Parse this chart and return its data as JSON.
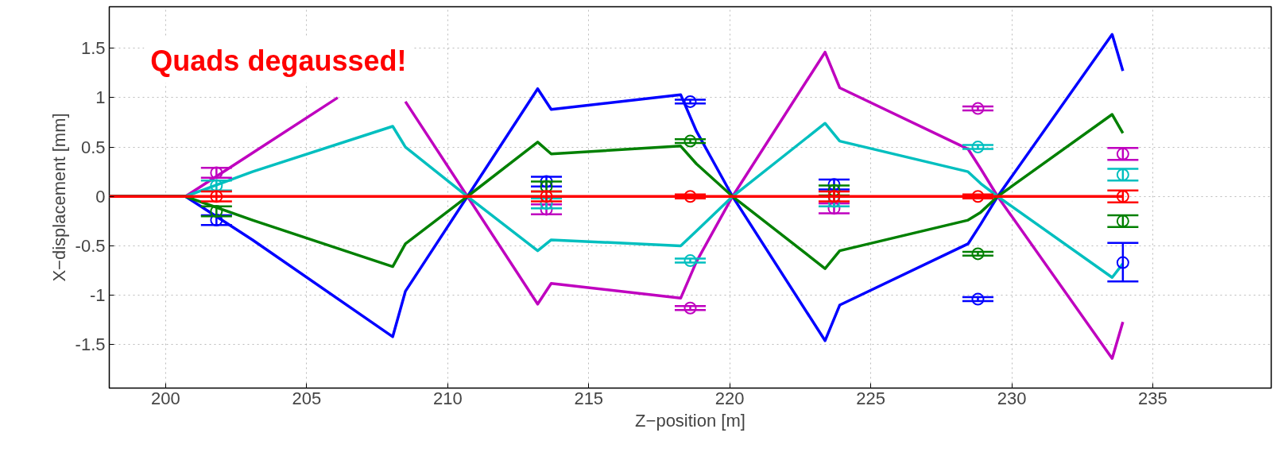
{
  "chart_data": {
    "type": "line",
    "xlabel": "Z−position [m]",
    "ylabel": "X−displacement [mm]",
    "annotations": [
      "Quads degaussed!"
    ],
    "xlim": [
      198,
      239.2
    ],
    "ylim": [
      -1.94,
      1.92
    ],
    "xticks": [
      200,
      205,
      210,
      215,
      220,
      225,
      230,
      235
    ],
    "yticks": [
      -1.5,
      -1,
      -0.5,
      0,
      0.5,
      1,
      1.5
    ],
    "grid": true,
    "line_style": "solid",
    "marker": "none",
    "series": [
      {
        "color": "#0000ff",
        "x": [
          198,
          200.7,
          203.08,
          208.05,
          208.5,
          210.7,
          213.19,
          213.67,
          218.26,
          218.82,
          220.1,
          223.38,
          223.9,
          228.45,
          228.9,
          229.5,
          233.56,
          233.94
        ],
        "values": [
          0,
          0,
          -0.44,
          -1.42,
          -0.96,
          0,
          1.09,
          0.88,
          1.03,
          0.66,
          0,
          -1.46,
          -1.1,
          -0.48,
          -0.28,
          0,
          1.64,
          1.27
        ]
      },
      {
        "color": "#bf00bf",
        "x": [
          198,
          200.7,
          203.08,
          206.1,
          207.3,
          208.5,
          210.7,
          213.19,
          213.67,
          218.26,
          218.82,
          220.1,
          223.38,
          223.9,
          228.45,
          228.9,
          229.5,
          233.56,
          233.94
        ],
        "values": [
          0,
          0,
          0.44,
          1.0,
          null,
          0.96,
          0,
          -1.09,
          -0.88,
          -1.03,
          -0.66,
          0,
          1.46,
          1.1,
          0.48,
          0.28,
          0,
          -1.64,
          -1.27
        ]
      },
      {
        "color": "#00bfbf",
        "x": [
          198,
          200.7,
          203.08,
          208.05,
          208.5,
          210.7,
          213.19,
          213.67,
          218.26,
          218.82,
          220.1,
          223.38,
          223.9,
          228.45,
          228.9,
          229.5,
          233.56,
          233.94
        ],
        "values": [
          0,
          0,
          0.25,
          0.71,
          0.5,
          0,
          -0.55,
          -0.44,
          -0.5,
          -0.35,
          0,
          0.74,
          0.56,
          0.25,
          0.13,
          0,
          -0.82,
          -0.68
        ]
      },
      {
        "color": "#008000",
        "x": [
          198,
          200.7,
          203.08,
          208.05,
          208.5,
          210.7,
          213.19,
          213.67,
          218.26,
          218.82,
          220.1,
          223.38,
          223.9,
          228.45,
          228.9,
          229.5,
          233.56,
          233.94
        ],
        "values": [
          0,
          0,
          -0.24,
          -0.71,
          -0.48,
          0,
          0.55,
          0.43,
          0.51,
          0.33,
          0,
          -0.73,
          -0.55,
          -0.24,
          -0.16,
          0,
          0.83,
          0.64
        ]
      },
      {
        "type": "scatter",
        "color": "#0000ff",
        "marker": "circle",
        "x": [
          201.8,
          213.5,
          218.6,
          223.7,
          228.8,
          233.94
        ],
        "values": [
          -0.24,
          0.15,
          0.96,
          0.12,
          -1.04,
          -0.67
        ],
        "errors": [
          0.05,
          0.05,
          0.02,
          0.05,
          0.02,
          [
            -0.86,
            -0.47
          ]
        ]
      },
      {
        "type": "scatter",
        "color": "#bf00bf",
        "marker": "circle",
        "x": [
          201.8,
          213.5,
          218.6,
          223.7,
          228.8,
          233.94
        ],
        "values": [
          0.24,
          -0.13,
          -1.13,
          -0.12,
          0.89,
          0.43
        ],
        "errors": [
          0.05,
          0.05,
          0.02,
          0.05,
          0.02,
          0.06
        ]
      },
      {
        "type": "scatter",
        "color": "#00bfbf",
        "marker": "circle",
        "x": [
          201.8,
          213.5,
          218.6,
          223.7,
          228.8,
          233.94
        ],
        "values": [
          0.11,
          -0.07,
          -0.65,
          -0.05,
          0.5,
          0.22
        ],
        "errors": [
          0.05,
          0.05,
          0.02,
          0.05,
          0.02,
          0.06
        ]
      },
      {
        "type": "scatter",
        "color": "#008000",
        "marker": "circle",
        "x": [
          201.8,
          213.5,
          218.6,
          223.7,
          228.8,
          233.94
        ],
        "values": [
          -0.15,
          0.1,
          0.56,
          0.06,
          -0.58,
          -0.25
        ],
        "errors": [
          0.05,
          0.05,
          0.02,
          0.05,
          0.02,
          0.06
        ]
      },
      {
        "type": "scatter",
        "color": "#ff0000",
        "marker": "circle",
        "x": [
          201.8,
          213.5,
          218.6,
          223.7,
          228.8,
          233.94
        ],
        "values": [
          0,
          0,
          0,
          0,
          0,
          0
        ],
        "errors": [
          0.05,
          0.05,
          0.02,
          0.05,
          0.02,
          0.06
        ]
      },
      {
        "color": "#ff0000",
        "x": [
          198,
          233.94
        ],
        "values": [
          0,
          0
        ]
      }
    ]
  }
}
